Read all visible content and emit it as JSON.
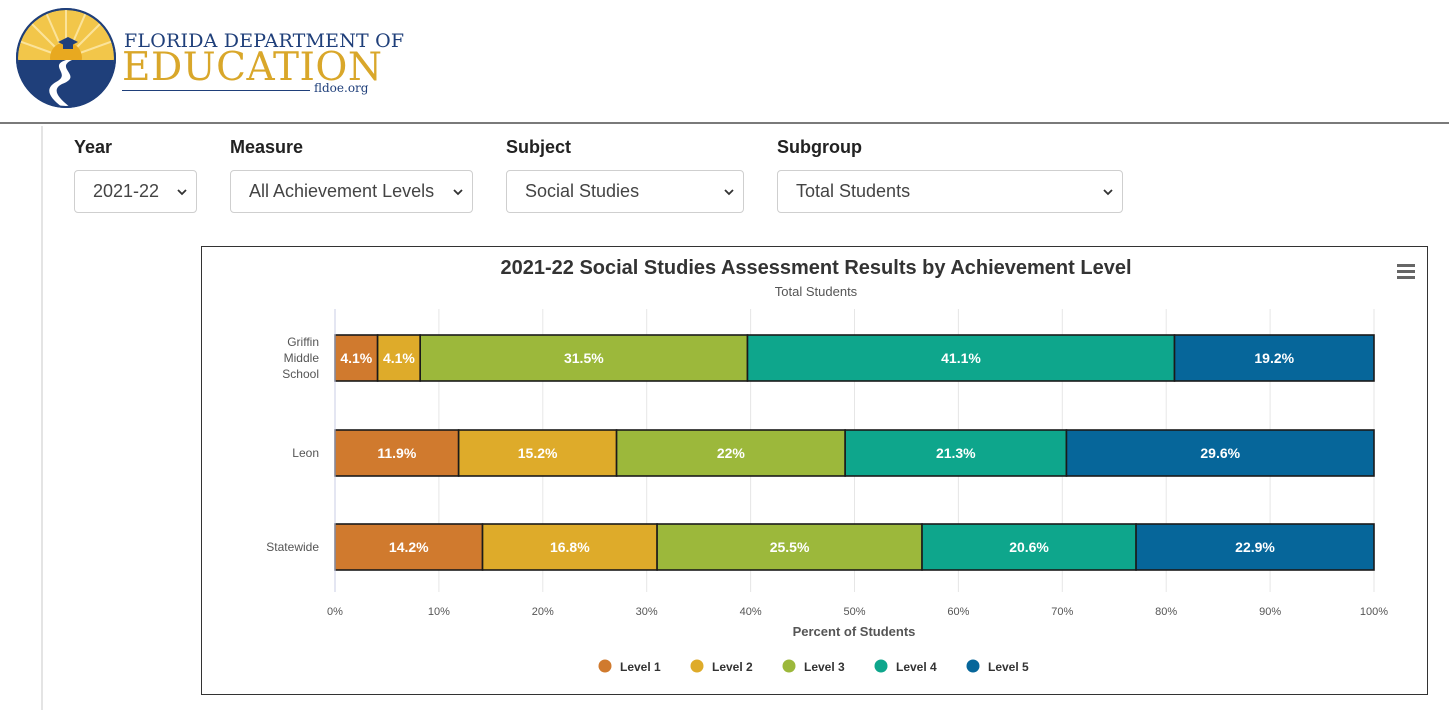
{
  "header": {
    "logo_line1": "FLORIDA DEPARTMENT OF",
    "logo_line2": "EDUCATION",
    "logo_url": "fldoe.org"
  },
  "filters": {
    "year": {
      "label": "Year",
      "value": "2021-22"
    },
    "measure": {
      "label": "Measure",
      "value": "All Achievement Levels"
    },
    "subject": {
      "label": "Subject",
      "value": "Social Studies"
    },
    "subgroup": {
      "label": "Subgroup",
      "value": "Total Students"
    }
  },
  "chart_data": {
    "type": "bar",
    "orientation": "horizontal",
    "stacked": true,
    "title": "2021-22 Social Studies Assessment Results by Achievement Level",
    "subtitle": "Total Students",
    "xlabel": "Percent of Students",
    "xlim": [
      0,
      100
    ],
    "x_ticks": [
      "0%",
      "10%",
      "20%",
      "30%",
      "40%",
      "50%",
      "60%",
      "70%",
      "80%",
      "90%",
      "100%"
    ],
    "categories": [
      "Griffin Middle School",
      "Leon",
      "Statewide"
    ],
    "series": [
      {
        "name": "Level 1",
        "color": "#d07a2e",
        "values": [
          4.1,
          11.9,
          14.2
        ]
      },
      {
        "name": "Level 2",
        "color": "#deab2a",
        "values": [
          4.1,
          15.2,
          16.8
        ]
      },
      {
        "name": "Level 3",
        "color": "#9cb83b",
        "values": [
          31.5,
          22,
          25.5
        ]
      },
      {
        "name": "Level 4",
        "color": "#0ea68c",
        "values": [
          41.1,
          21.3,
          20.6
        ]
      },
      {
        "name": "Level 5",
        "color": "#06669a",
        "values": [
          19.2,
          29.6,
          22.9
        ]
      }
    ],
    "legend_position": "bottom",
    "grid": true
  }
}
